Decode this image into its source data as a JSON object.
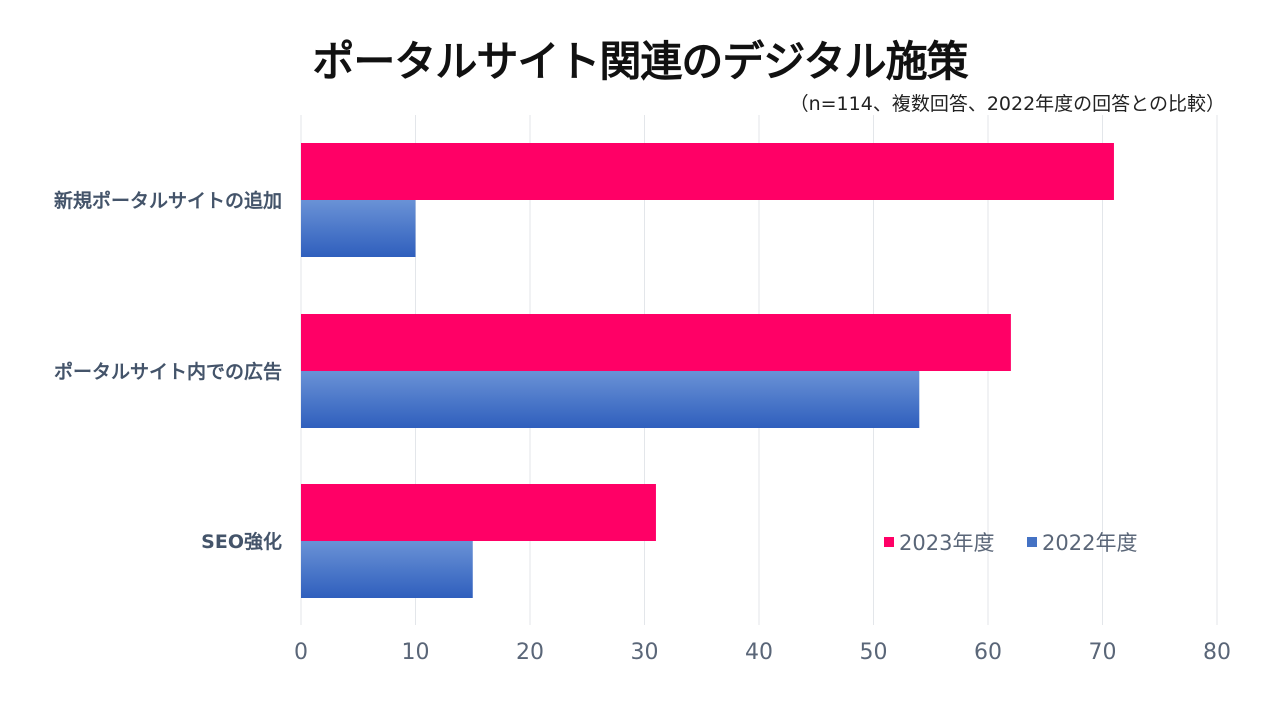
{
  "title": "ポータルサイト関連のデジタル施策",
  "subtitle": "（n=114、複数回答、2022年度の回答との比較）",
  "chart_data": {
    "type": "bar",
    "orientation": "horizontal",
    "categories": [
      "新規ポータルサイトの追加",
      "ポータルサイト内での広告",
      "SEO強化"
    ],
    "series": [
      {
        "name": "2023年度",
        "values": [
          71,
          62,
          31
        ],
        "color": "#ff0066"
      },
      {
        "name": "2022年度",
        "values": [
          10,
          54,
          15
        ],
        "color": "#4472c4"
      }
    ],
    "xlim": [
      0,
      80
    ],
    "xticks": [
      0,
      10,
      20,
      30,
      40,
      50,
      60,
      70,
      80
    ],
    "grid": true,
    "legend_position": "bottom-right"
  }
}
